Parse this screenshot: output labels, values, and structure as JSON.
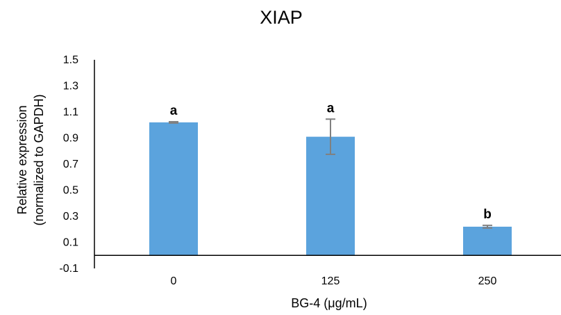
{
  "chart_data": {
    "type": "bar",
    "title": "XIAP",
    "xlabel": "BG-4 (μg/mL)",
    "ylabel_lines": [
      "Relative expression",
      "(normalized to GAPDH)"
    ],
    "categories": [
      "0",
      "125",
      "250"
    ],
    "values": [
      1.02,
      0.91,
      0.22
    ],
    "errors": [
      0.005,
      0.135,
      0.01
    ],
    "annotations": [
      "a",
      "a",
      "b"
    ],
    "ylim": [
      -0.1,
      1.5
    ],
    "yticks": [
      -0.1,
      0.1,
      0.3,
      0.5,
      0.7,
      0.9,
      1.1,
      1.3,
      1.5
    ],
    "ytick_labels": [
      "-0.1",
      "0.1",
      "0.3",
      "0.5",
      "0.7",
      "0.9",
      "1.1",
      "1.3",
      "1.5"
    ],
    "grid": false,
    "bar_color": "#5ba3dd",
    "error_bar_color": "#808080"
  }
}
